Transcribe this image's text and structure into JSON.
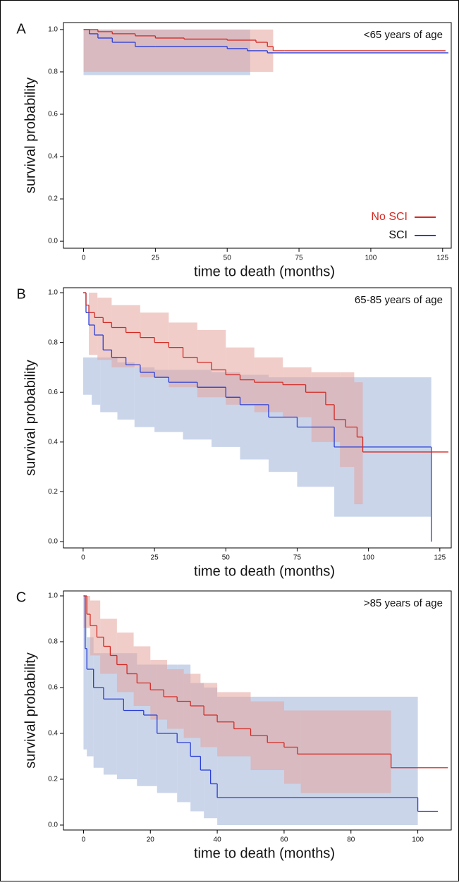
{
  "chart_data": [
    {
      "type": "step",
      "panel": "A",
      "annotation": "<65 years of age",
      "xlabel": "time to death (months)",
      "ylabel": "survival probability",
      "xlim": [
        -7,
        128
      ],
      "xticks": [
        0,
        25,
        50,
        75,
        100,
        125
      ],
      "ylim": [
        -0.033,
        1.033
      ],
      "yticks": [
        {
          "value": 0,
          "label": "0.0"
        },
        {
          "value": 0.2,
          "label": "0.2"
        },
        {
          "value": 0.4,
          "label": "0.4"
        },
        {
          "value": 0.6,
          "label": "0.6"
        },
        {
          "value": 0.8,
          "label": "0.8"
        },
        {
          "value": 1,
          "label": "1.0"
        }
      ],
      "legend": "lower right",
      "series": [
        {
          "name": "SCI",
          "color": "#2b3fd6",
          "band_color": "#9fb3d8",
          "x": [
            0,
            2,
            5,
            10,
            18,
            25,
            50,
            57,
            64,
            127
          ],
          "values": [
            1,
            0.98,
            0.96,
            0.94,
            0.92,
            0.92,
            0.91,
            0.9,
            0.89,
            0.89
          ],
          "ci_x": [
            0,
            58
          ],
          "ci_lower": [
            0.785,
            0.785
          ],
          "ci_upper": [
            1,
            1
          ]
        },
        {
          "name": "No SCI",
          "color": "#d42a24",
          "band_color": "#e3a49c",
          "x": [
            0,
            5,
            10,
            18,
            25,
            35,
            50,
            60,
            64,
            66,
            70,
            126
          ],
          "values": [
            1,
            0.99,
            0.98,
            0.97,
            0.96,
            0.955,
            0.95,
            0.94,
            0.92,
            0.9,
            0.9,
            0.9
          ],
          "ci_x": [
            0,
            66
          ],
          "ci_lower": [
            0.8,
            0.8
          ],
          "ci_upper": [
            1,
            1
          ]
        }
      ]
    },
    {
      "type": "step",
      "panel": "B",
      "annotation": "65-85 years of age",
      "xlabel": "time to death (months)",
      "ylabel": "survival probability",
      "xlim": [
        -6.9,
        129
      ],
      "xticks": [
        0,
        25,
        50,
        75,
        100,
        125
      ],
      "ylim": [
        -0.0255,
        1.02
      ],
      "yticks": [
        {
          "value": 0,
          "label": "0.0"
        },
        {
          "value": 0.2,
          "label": "0.2"
        },
        {
          "value": 0.4,
          "label": "0.4"
        },
        {
          "value": 0.6,
          "label": "0.6"
        },
        {
          "value": 0.8,
          "label": "0.8"
        },
        {
          "value": 1,
          "label": "1.0"
        }
      ],
      "series": [
        {
          "color": "#2b3fd6",
          "band_color": "#9fb3d8",
          "x": [
            0,
            1,
            2,
            4,
            7,
            10,
            15,
            20,
            25,
            30,
            40,
            50,
            55,
            65,
            75,
            88,
            122
          ],
          "values": [
            1,
            0.92,
            0.87,
            0.83,
            0.77,
            0.74,
            0.71,
            0.68,
            0.66,
            0.64,
            0.62,
            0.58,
            0.55,
            0.5,
            0.46,
            0.38,
            0
          ],
          "ci_x": [
            0,
            3,
            6,
            12,
            18,
            25,
            35,
            45,
            55,
            65,
            75,
            88,
            122
          ],
          "ci_lower": [
            0.59,
            0.55,
            0.52,
            0.49,
            0.46,
            0.44,
            0.41,
            0.38,
            0.33,
            0.28,
            0.22,
            0.1,
            0.1
          ],
          "ci_upper": [
            0.74,
            0.74,
            0.74,
            0.72,
            0.7,
            0.69,
            0.69,
            0.68,
            0.67,
            0.66,
            0.66,
            0.66,
            0.66
          ]
        },
        {
          "color": "#d42a24",
          "band_color": "#e3a49c",
          "x": [
            0,
            1,
            2,
            4,
            7,
            10,
            15,
            20,
            25,
            30,
            35,
            40,
            45,
            50,
            55,
            60,
            70,
            78,
            85,
            88,
            92,
            96,
            98,
            128
          ],
          "values": [
            1,
            0.95,
            0.92,
            0.9,
            0.88,
            0.86,
            0.84,
            0.82,
            0.8,
            0.78,
            0.74,
            0.72,
            0.69,
            0.67,
            0.65,
            0.64,
            0.63,
            0.6,
            0.55,
            0.49,
            0.46,
            0.42,
            0.36,
            0.36
          ],
          "ci_x": [
            0,
            2,
            5,
            10,
            20,
            30,
            40,
            50,
            60,
            70,
            80,
            90,
            95,
            98
          ],
          "ci_lower": [
            1,
            0.75,
            0.73,
            0.7,
            0.66,
            0.62,
            0.58,
            0.55,
            0.52,
            0.5,
            0.4,
            0.3,
            0.15,
            0.15
          ],
          "ci_upper": [
            1,
            1,
            0.98,
            0.95,
            0.92,
            0.88,
            0.85,
            0.78,
            0.74,
            0.7,
            0.68,
            0.68,
            0.64,
            0.64
          ]
        }
      ]
    },
    {
      "type": "step",
      "panel": "C",
      "annotation": ">85 years of age",
      "xlabel": "time to death (months)",
      "ylabel": "survival probability",
      "xlim": [
        -6,
        110
      ],
      "xticks": [
        0,
        20,
        40,
        60,
        80,
        100
      ],
      "ylim": [
        -0.0215,
        1.0215
      ],
      "yticks": [
        {
          "value": 0,
          "label": "0.0"
        },
        {
          "value": 0.2,
          "label": "0.2"
        },
        {
          "value": 0.4,
          "label": "0.4"
        },
        {
          "value": 0.6,
          "label": "0.6"
        },
        {
          "value": 0.8,
          "label": "0.8"
        },
        {
          "value": 1,
          "label": "1.0"
        }
      ],
      "series": [
        {
          "color": "#2b3fd6",
          "band_color": "#9fb3d8",
          "x": [
            0,
            0.5,
            1,
            3,
            6,
            12,
            18,
            22,
            28,
            32,
            35,
            38,
            40,
            100,
            106
          ],
          "values": [
            1,
            0.77,
            0.68,
            0.6,
            0.55,
            0.5,
            0.48,
            0.4,
            0.36,
            0.3,
            0.24,
            0.18,
            0.12,
            0.06,
            0.06
          ],
          "ci_x": [
            0,
            1,
            3,
            6,
            10,
            16,
            22,
            28,
            32,
            36,
            40,
            100
          ],
          "ci_lower": [
            0.33,
            0.3,
            0.25,
            0.22,
            0.2,
            0.17,
            0.14,
            0.1,
            0.06,
            0.03,
            0,
            0
          ],
          "ci_upper": [
            1,
            0.82,
            0.75,
            0.75,
            0.75,
            0.7,
            0.7,
            0.7,
            0.62,
            0.6,
            0.56,
            0.56
          ]
        },
        {
          "color": "#d42a24",
          "band_color": "#e3a49c",
          "x": [
            0,
            1,
            2,
            4,
            6,
            8,
            10,
            13,
            16,
            20,
            24,
            28,
            32,
            36,
            40,
            45,
            50,
            55,
            60,
            64,
            92,
            109
          ],
          "values": [
            1,
            0.92,
            0.87,
            0.82,
            0.78,
            0.74,
            0.7,
            0.66,
            0.62,
            0.59,
            0.56,
            0.54,
            0.52,
            0.48,
            0.45,
            0.42,
            0.39,
            0.36,
            0.34,
            0.31,
            0.25,
            0.25
          ],
          "ci_x": [
            0,
            2,
            5,
            10,
            15,
            20,
            25,
            30,
            35,
            40,
            50,
            60,
            65,
            92
          ],
          "ci_lower": [
            0.86,
            0.74,
            0.66,
            0.58,
            0.52,
            0.46,
            0.42,
            0.38,
            0.34,
            0.3,
            0.24,
            0.18,
            0.14,
            0.14
          ],
          "ci_upper": [
            1,
            0.98,
            0.9,
            0.84,
            0.78,
            0.72,
            0.68,
            0.66,
            0.62,
            0.58,
            0.54,
            0.5,
            0.5,
            0.5
          ]
        }
      ]
    }
  ]
}
